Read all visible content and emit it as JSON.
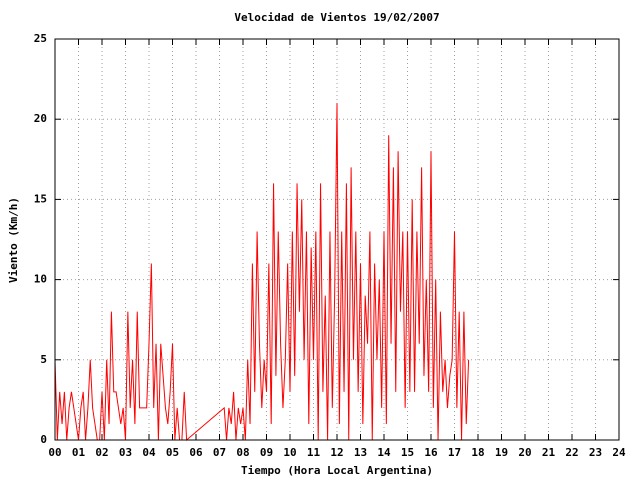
{
  "chart_data": {
    "type": "line",
    "title": "Velocidad de Vientos 19/02/2007",
    "xlabel": "Tiempo (Hora Local Argentina)",
    "ylabel": "Viento (Km/h)",
    "color": "#ff0000",
    "grid": true,
    "xlim": [
      0,
      24
    ],
    "ylim": [
      0,
      25
    ],
    "xticks": [
      {
        "value": 0,
        "label": "00"
      },
      {
        "value": 1,
        "label": "01"
      },
      {
        "value": 2,
        "label": "02"
      },
      {
        "value": 3,
        "label": "03"
      },
      {
        "value": 4,
        "label": "04"
      },
      {
        "value": 5,
        "label": "05"
      },
      {
        "value": 6,
        "label": "06"
      },
      {
        "value": 7,
        "label": "07"
      },
      {
        "value": 8,
        "label": "08"
      },
      {
        "value": 9,
        "label": "09"
      },
      10,
      11,
      12,
      13,
      14,
      15,
      16,
      17,
      18,
      19,
      20,
      21,
      22,
      23,
      24
    ],
    "yticks": [
      0,
      5,
      10,
      15,
      20,
      25
    ],
    "x": [
      0.0,
      0.1,
      0.2,
      0.3,
      0.4,
      0.5,
      0.6,
      0.7,
      0.8,
      0.9,
      1.0,
      1.1,
      1.2,
      1.3,
      1.4,
      1.5,
      1.6,
      1.7,
      1.8,
      1.9,
      2.0,
      2.1,
      2.2,
      2.3,
      2.4,
      2.5,
      2.6,
      2.7,
      2.8,
      2.9,
      3.0,
      3.1,
      3.2,
      3.3,
      3.4,
      3.5,
      3.6,
      3.7,
      3.8,
      3.9,
      4.0,
      4.1,
      4.2,
      4.3,
      4.4,
      4.5,
      4.6,
      4.7,
      4.8,
      4.9,
      5.0,
      5.1,
      5.2,
      5.3,
      5.4,
      5.5,
      5.6,
      7.2,
      7.3,
      7.4,
      7.5,
      7.6,
      7.7,
      7.8,
      7.9,
      8.0,
      8.1,
      8.2,
      8.3,
      8.4,
      8.5,
      8.6,
      8.7,
      8.8,
      8.9,
      9.0,
      9.1,
      9.2,
      9.3,
      9.4,
      9.5,
      9.6,
      9.7,
      9.8,
      9.9,
      10.0,
      10.1,
      10.2,
      10.3,
      10.4,
      10.5,
      10.6,
      10.7,
      10.8,
      10.9,
      11.0,
      11.1,
      11.2,
      11.3,
      11.4,
      11.5,
      11.6,
      11.7,
      11.8,
      11.9,
      12.0,
      12.1,
      12.2,
      12.3,
      12.4,
      12.5,
      12.6,
      12.7,
      12.8,
      12.9,
      13.0,
      13.1,
      13.2,
      13.3,
      13.4,
      13.5,
      13.6,
      13.7,
      13.8,
      13.9,
      14.0,
      14.1,
      14.2,
      14.3,
      14.4,
      14.5,
      14.6,
      14.7,
      14.8,
      14.9,
      15.0,
      15.1,
      15.2,
      15.3,
      15.4,
      15.5,
      15.6,
      15.7,
      15.8,
      15.9,
      16.0,
      16.1,
      16.2,
      16.3,
      16.4,
      16.5,
      16.6,
      16.7,
      16.8,
      16.9,
      17.0,
      17.1,
      17.2,
      17.3,
      17.4,
      17.5,
      17.6
    ],
    "values": [
      5,
      0,
      3,
      1,
      3,
      0,
      2,
      3,
      2,
      1,
      0,
      2,
      3,
      0,
      2,
      5,
      2,
      1,
      0,
      0,
      3,
      0,
      5,
      1,
      8,
      3,
      3,
      2,
      1,
      2,
      0,
      8,
      2,
      5,
      1,
      8,
      2,
      2,
      2,
      2,
      6,
      11,
      2,
      6,
      0,
      6,
      4,
      2,
      1,
      3,
      6,
      0,
      2,
      0,
      0,
      3,
      0,
      2,
      0,
      2,
      1,
      3,
      0,
      2,
      1,
      2,
      0,
      5,
      1,
      11,
      3,
      13,
      6,
      2,
      5,
      3,
      11,
      1,
      16,
      4,
      13,
      6,
      2,
      5,
      11,
      3,
      13,
      4,
      16,
      8,
      15,
      5,
      13,
      1,
      12,
      5,
      13,
      0,
      16,
      3,
      9,
      0,
      13,
      2,
      9,
      21,
      1,
      13,
      3,
      16,
      0,
      17,
      5,
      13,
      3,
      11,
      1,
      9,
      6,
      13,
      0,
      11,
      5,
      10,
      2,
      13,
      1,
      19,
      6,
      17,
      3,
      18,
      8,
      13,
      2,
      13,
      3,
      15,
      3,
      13,
      6,
      17,
      4,
      10,
      3,
      18,
      2,
      10,
      0,
      8,
      3,
      5,
      2,
      4,
      5,
      13,
      2,
      8,
      0,
      8,
      1,
      5
    ]
  }
}
